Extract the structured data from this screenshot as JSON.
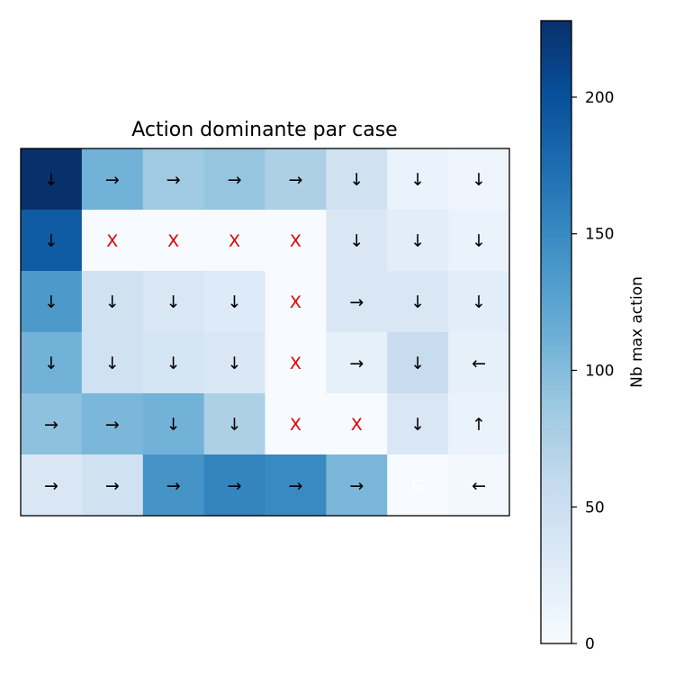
{
  "chart_data": {
    "type": "heatmap",
    "title": "Action dominante par case",
    "rows": 6,
    "cols": 8,
    "colorbar": {
      "label": "Nb max action",
      "min": 0,
      "max": 228,
      "ticks": [
        0,
        50,
        100,
        150,
        200
      ],
      "colormap": "Blues"
    },
    "values": [
      [
        228,
        110,
        85,
        90,
        75,
        45,
        15,
        10
      ],
      [
        190,
        0,
        0,
        0,
        0,
        35,
        25,
        15
      ],
      [
        135,
        45,
        35,
        30,
        0,
        35,
        35,
        25
      ],
      [
        110,
        45,
        40,
        35,
        0,
        20,
        55,
        20
      ],
      [
        95,
        105,
        110,
        75,
        0,
        0,
        35,
        15
      ],
      [
        35,
        45,
        140,
        155,
        150,
        105,
        0,
        5
      ]
    ],
    "labels": [
      [
        "↓",
        "→",
        "→",
        "→",
        "→",
        "↓",
        "↓",
        "↓"
      ],
      [
        "↓",
        "X",
        "X",
        "X",
        "X",
        "↓",
        "↓",
        "↓"
      ],
      [
        "↓",
        "↓",
        "↓",
        "↓",
        "X",
        "→",
        "↓",
        "↓"
      ],
      [
        "↓",
        "↓",
        "↓",
        "↓",
        "X",
        "→",
        "↓",
        "←"
      ],
      [
        "→",
        "→",
        "↓",
        "↓",
        "X",
        "X",
        "↓",
        "↑"
      ],
      [
        "→",
        "→",
        "→",
        "→",
        "→",
        "→",
        "G",
        "←"
      ]
    ],
    "label_colors": {
      "arrow": "#000000",
      "X": "#e00000",
      "G": "#ffffff"
    }
  }
}
